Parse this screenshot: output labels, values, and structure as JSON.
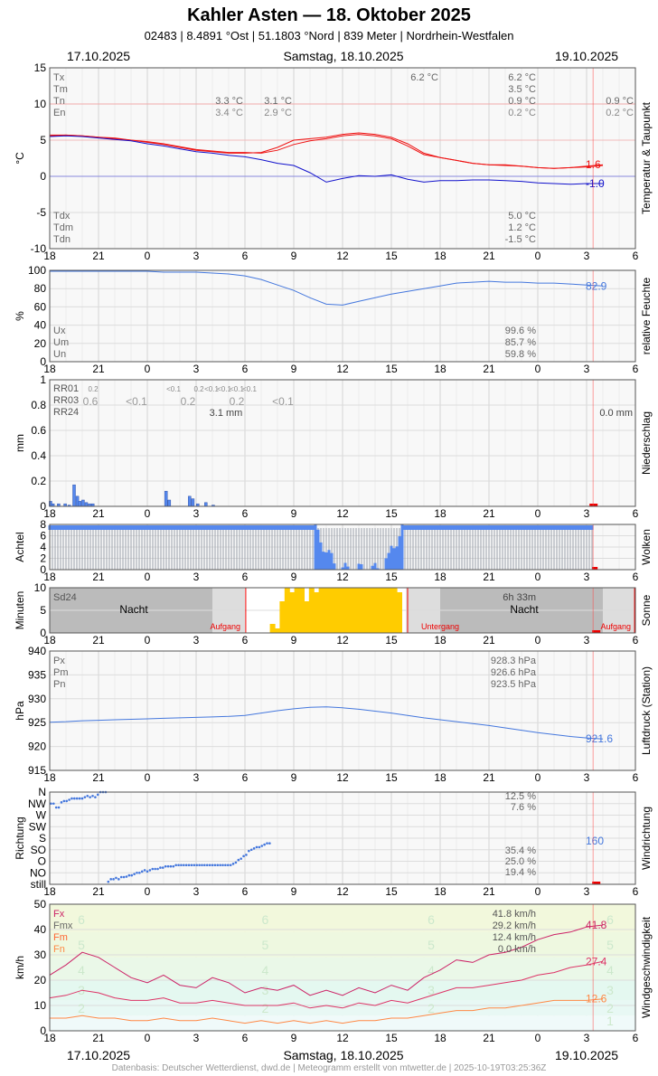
{
  "header": {
    "title": "Kahler Asten  —  18. Oktober 2025",
    "subtitle": "02483  |  8.4891 °Ost  |  51.1803 °Nord  |  839 Meter  |  Nordrhein-Westfalen"
  },
  "dates": {
    "left": "17.10.2025",
    "center": "Samstag, 18.10.2025",
    "right": "19.10.2025"
  },
  "footer": "Datenbasis: Deutscher Wetterdienst, dwd.de | Meteogramm erstellt von mtwetter.de | 2025-10-19T03:25:36Z",
  "x_ticks": [
    "18",
    "21",
    "0",
    "3",
    "6",
    "9",
    "12",
    "15",
    "18",
    "21",
    "0",
    "3",
    "6"
  ],
  "colors": {
    "grid": "#dddddd",
    "border": "#555555",
    "temp": "#ee1111",
    "dew": "#1111cc",
    "blue": "#4477dd",
    "rain": "#5588ee",
    "sun": "#ffcc00",
    "gust": "#cc2266",
    "wind_max": "#dd3366",
    "wind_mean": "#ff8844",
    "now": "#ff4444"
  },
  "chart_data": [
    {
      "type": "line",
      "name": "temperature",
      "ylabel": "°C",
      "side_label": "Temperatur & Taupunkt",
      "ylim": [
        -10,
        15
      ],
      "yticks": [
        15,
        10,
        5,
        0,
        -5,
        -10
      ],
      "x": [
        0,
        1,
        2,
        3,
        4,
        5,
        6,
        7,
        8,
        9,
        10,
        11,
        12,
        13,
        14,
        15,
        16,
        17,
        18,
        19,
        20,
        21,
        22,
        23,
        24,
        25,
        26,
        27,
        28,
        29,
        30,
        31,
        32,
        33,
        34
      ],
      "series": [
        {
          "values": [
            5.6,
            5.7,
            5.6,
            5.4,
            5.2,
            5.0,
            4.7,
            4.4,
            4.0,
            3.6,
            3.4,
            3.2,
            3.2,
            3.3,
            4.0,
            5.0,
            5.2,
            5.4,
            5.8,
            6.0,
            5.8,
            5.4,
            4.5,
            3.2,
            2.6,
            2.2,
            1.8,
            1.6,
            1.6,
            1.4,
            1.2,
            1.1,
            1.2,
            1.4,
            1.6
          ]
        },
        {
          "values": [
            5.7,
            5.7,
            5.6,
            5.4,
            5.3,
            5.0,
            4.8,
            4.5,
            4.1,
            3.7,
            3.5,
            3.3,
            3.3,
            3.2,
            3.6,
            4.4,
            4.9,
            5.2,
            5.6,
            5.8,
            5.6,
            5.2,
            4.2,
            3.0,
            2.6,
            2.2,
            1.8,
            1.6,
            1.5,
            1.4,
            1.2,
            1.1,
            1.2,
            1.3,
            1.5
          ]
        },
        {
          "values": [
            5.5,
            5.6,
            5.5,
            5.3,
            5.1,
            4.9,
            4.5,
            4.2,
            3.8,
            3.4,
            3.2,
            2.9,
            2.7,
            2.3,
            1.8,
            1.5,
            0.5,
            -0.8,
            -0.3,
            0.1,
            0.0,
            0.2,
            -0.4,
            -0.8,
            -0.6,
            -0.6,
            -0.5,
            -0.5,
            -0.6,
            -0.7,
            -0.9,
            -1.0,
            -1.1,
            -1.0,
            -1.0
          ]
        }
      ],
      "annotations": [
        {
          "row": 0,
          "label": "Tx"
        },
        {
          "row": 1,
          "label": "Tm"
        },
        {
          "row": 2,
          "label": "Tn"
        },
        {
          "row": 3,
          "label": "En"
        }
      ],
      "stat_values": [
        {
          "x": 2.9,
          "row": 2,
          "text": "3.3 °C"
        },
        {
          "x": 2.9,
          "row": 3,
          "text": "3.4 °C"
        },
        {
          "x": 4.0,
          "row": 2,
          "text": "3.1 °C"
        },
        {
          "x": 4.0,
          "row": 3,
          "text": "2.9 °C"
        },
        {
          "x": 11.0,
          "row": 0,
          "text": "6.2 °C"
        },
        {
          "x": 13.0,
          "row": 0,
          "text": "6.2 °C"
        },
        {
          "x": 13.0,
          "row": 1,
          "text": "3.5 °C"
        },
        {
          "x": 13.0,
          "row": 2,
          "text": "0.9 °C"
        },
        {
          "x": 13.0,
          "row": 3,
          "text": "0.2 °C"
        },
        {
          "x": 16.0,
          "row": 2,
          "text": "0.9 °C"
        },
        {
          "x": 16.0,
          "row": 3,
          "text": "0.2 °C"
        }
      ],
      "bottom_labels": [
        "Tdx",
        "Tdm",
        "Tdn"
      ],
      "bottom_values": [
        "5.0 °C",
        "1.2 °C",
        "-1.5 °C"
      ],
      "end_labels": [
        {
          "value": 1.6,
          "text": "1.6"
        },
        {
          "value": -1.0,
          "text": "-1.0"
        }
      ]
    },
    {
      "type": "line",
      "name": "humidity",
      "ylabel": "%",
      "side_label": "relative Feuchte",
      "ylim": [
        0,
        100
      ],
      "yticks": [
        100,
        80,
        60,
        40,
        20,
        0
      ],
      "x": [
        0,
        1,
        2,
        3,
        4,
        5,
        6,
        7,
        8,
        9,
        10,
        11,
        12,
        13,
        14,
        15,
        16,
        17,
        18,
        19,
        20,
        21,
        22,
        23,
        24,
        25,
        26,
        27,
        28,
        29,
        30,
        31,
        32,
        33,
        34
      ],
      "series": [
        {
          "values": [
            99,
            99,
            99,
            99,
            99,
            99,
            99,
            98,
            98,
            98,
            97,
            96,
            94,
            90,
            84,
            78,
            70,
            63,
            62,
            66,
            70,
            74,
            77,
            80,
            83,
            86,
            87,
            88,
            87,
            87,
            86,
            86,
            85,
            84,
            83
          ]
        }
      ],
      "bottom_labels": [
        "Ux",
        "Um",
        "Un"
      ],
      "bottom_values": [
        "99.6 %",
        "85.7 %",
        "59.8 %"
      ],
      "end_labels": [
        {
          "value": 82.9,
          "text": "82.9"
        }
      ]
    },
    {
      "type": "bar",
      "name": "precipitation",
      "ylabel": "mm",
      "side_label": "Niederschlag",
      "ylim": [
        0,
        1.0
      ],
      "yticks": [
        1.0,
        0.8,
        0.6,
        0.4,
        0.2,
        0
      ],
      "x": [
        0.05,
        0.2,
        0.55,
        0.95,
        1.2,
        1.5,
        1.7,
        1.85,
        2.05,
        2.25,
        2.45,
        2.65,
        7.15,
        7.35,
        8.6,
        8.8,
        9.1,
        9.6,
        10.05
      ],
      "values": [
        0.04,
        0.02,
        0.02,
        0.02,
        0.01,
        0.17,
        0.08,
        0.04,
        0.05,
        0.03,
        0.02,
        0.02,
        0.12,
        0.05,
        0.08,
        0.06,
        0.02,
        0.03,
        0.01
      ],
      "header_labels": [
        "RR01",
        "RR03",
        "RR24"
      ],
      "rr01_values": [
        {
          "x": 2.2,
          "text": "0.2"
        },
        {
          "x": 3.1,
          "text": "<0.1"
        },
        {
          "x": 7.2,
          "text": "0.2"
        },
        {
          "x": 8.9,
          "text": "<0.1"
        },
        {
          "x": 9.6,
          "text": "<0.1"
        },
        {
          "x": 10.3,
          "text": "<0.1"
        },
        {
          "x": 11.0,
          "text": "<0.1"
        }
      ],
      "rr03_values": [
        {
          "x": 2.5,
          "text": "0.6"
        },
        {
          "x": 5.1,
          "text": "<0.1"
        },
        {
          "x": 8.3,
          "text": "0.2"
        },
        {
          "x": 11.3,
          "text": "0.2"
        },
        {
          "x": 14.2,
          "text": "<0.1"
        }
      ],
      "rr24_values": [
        {
          "x": 10.5,
          "text": "3.1 mm"
        },
        {
          "x": 35.4,
          "text": "0.0 mm"
        }
      ]
    },
    {
      "type": "bar",
      "name": "clouds",
      "ylabel": "Achtel",
      "side_label": "Wolken",
      "ylim": [
        0,
        8
      ],
      "yticks": [
        8,
        6,
        4,
        2,
        0
      ],
      "x": [
        0,
        16.5
      ],
      "values": [
        8,
        0
      ],
      "clearing": [
        {
          "from": 16.5,
          "to": 21.5,
          "min_octa": 0
        }
      ]
    },
    {
      "type": "bar",
      "name": "sunshine",
      "ylabel": "Minuten",
      "side_label": "Sonne",
      "ylim": [
        0,
        10
      ],
      "yticks": [
        10,
        5,
        0
      ],
      "x": [
        13.7,
        14.0,
        14.3,
        14.6,
        14.9,
        15.2,
        15.5,
        15.8,
        16.1,
        16.4,
        16.7,
        17.0,
        17.3,
        17.6,
        17.9,
        18.2,
        18.5,
        18.8,
        19.1,
        19.4,
        19.7,
        20.0,
        20.3,
        20.6,
        20.9,
        21.2,
        21.5
      ],
      "values": [
        2,
        1,
        7,
        10,
        9,
        10,
        10,
        7,
        10,
        9,
        10,
        10,
        10,
        10,
        10,
        10,
        10,
        10,
        10,
        10,
        10,
        10,
        10,
        10,
        10,
        10,
        9
      ],
      "labels": {
        "sd24": "Sd24",
        "sd24_value": "6h 33m",
        "night": "Nacht",
        "night2": "Nacht",
        "sunrise": "Aufgang",
        "sunset": "Untergang",
        "sunrise2": "Aufgang"
      }
    },
    {
      "type": "line",
      "name": "pressure",
      "ylabel": "hPa",
      "side_label": "Luftdruck (Station)",
      "ylim": [
        915,
        940
      ],
      "yticks": [
        940,
        935,
        930,
        925,
        920,
        915
      ],
      "x": [
        0,
        1,
        2,
        3,
        4,
        5,
        6,
        7,
        8,
        9,
        10,
        11,
        12,
        13,
        14,
        15,
        16,
        17,
        18,
        19,
        20,
        21,
        22,
        23,
        24,
        25,
        26,
        27,
        28,
        29,
        30,
        31,
        32,
        33,
        34
      ],
      "series": [
        {
          "values": [
            925.1,
            925.2,
            925.4,
            925.5,
            925.6,
            925.7,
            925.8,
            925.9,
            926.0,
            926.1,
            926.2,
            926.3,
            926.5,
            927.0,
            927.5,
            927.9,
            928.2,
            928.3,
            928.1,
            927.8,
            927.4,
            927.0,
            926.5,
            926.0,
            925.6,
            925.2,
            924.8,
            924.4,
            923.9,
            923.4,
            922.9,
            922.5,
            922.1,
            921.8,
            921.6
          ]
        }
      ],
      "bottom_labels": [
        "Px",
        "Pm",
        "Pn"
      ],
      "bottom_values": [
        "928.3 hPa",
        "926.6 hPa",
        "923.5 hPa"
      ],
      "end_labels": [
        {
          "value": 921.6,
          "text": "921.6"
        }
      ]
    },
    {
      "type": "scatter",
      "name": "wind_direction",
      "ylabel": "Richtung",
      "side_label": "Windrichtung",
      "yticks": [
        "N",
        "NW",
        "W",
        "SW",
        "S",
        "SO",
        "O",
        "NO",
        "still"
      ],
      "x": [
        0.2,
        0.6,
        1.0,
        1.4,
        1.8,
        2.2,
        2.6,
        3.0,
        3.4,
        3.8,
        4.2,
        4.6,
        5.0,
        5.4,
        5.8,
        6.2,
        6.6,
        7.0,
        7.4,
        7.8,
        8.2,
        8.6,
        9.0,
        9.4,
        9.8,
        10.2,
        10.6,
        11.0,
        11.4,
        11.8,
        12.2,
        12.6,
        13.0,
        13.4,
        13.8,
        14.2,
        14.6,
        15.0,
        15.4,
        15.8,
        16.2,
        16.6,
        17.0,
        17.4,
        17.8,
        18.2,
        18.6,
        19.0,
        19.4,
        19.8,
        20.2,
        20.6,
        21.0,
        21.4,
        21.8,
        22.2,
        22.6,
        23.0,
        23.4,
        23.8,
        24.2,
        24.6,
        25.0,
        25.4,
        25.8,
        26.2,
        26.6,
        27.0,
        27.4,
        27.8,
        28.2,
        28.6,
        29.0,
        29.4,
        29.8,
        30.2,
        30.6,
        31.0,
        31.4,
        31.8,
        32.2,
        32.6,
        33.0,
        33.4,
        33.8
      ],
      "values": [
        315,
        315,
        300,
        300,
        320,
        325,
        325,
        330,
        335,
        335,
        335,
        335,
        335,
        340,
        345,
        340,
        345,
        340,
        350,
        360,
        0,
        0,
        10,
        20,
        20,
        25,
        20,
        15,
        25,
        30,
        35,
        35,
        40,
        45,
        45,
        50,
        55,
        50,
        55,
        60,
        60,
        60,
        65,
        65,
        70,
        70,
        70,
        70,
        75,
        75,
        75,
        75,
        75,
        75,
        75,
        75,
        75,
        75,
        75,
        75,
        75,
        75,
        75,
        75,
        75,
        75,
        75,
        75,
        75,
        75,
        80,
        85,
        95,
        100,
        110,
        115,
        130,
        135,
        140,
        145,
        145,
        150,
        155,
        160,
        160
      ],
      "annotations": [
        {
          "text": "12.5 %"
        },
        {
          "text": "7.6 %"
        },
        {
          "text": "35.4 %"
        },
        {
          "text": "25.0 %"
        },
        {
          "text": "19.4 %"
        }
      ],
      "end_labels": [
        {
          "text": "160"
        }
      ]
    },
    {
      "type": "line",
      "name": "wind_speed",
      "ylabel": "km/h",
      "side_label": "Windgeschwindigkeit",
      "ylim": [
        0,
        50
      ],
      "yticks": [
        50,
        40,
        30,
        20,
        10,
        0
      ],
      "x": [
        0,
        1,
        2,
        3,
        4,
        5,
        6,
        7,
        8,
        9,
        10,
        11,
        12,
        13,
        14,
        15,
        16,
        17,
        18,
        19,
        20,
        21,
        22,
        23,
        24,
        25,
        26,
        27,
        28,
        29,
        30,
        31,
        32,
        33,
        34
      ],
      "series": [
        {
          "values": [
            22,
            26,
            31,
            29,
            25,
            21,
            19,
            22,
            18,
            17,
            21,
            19,
            15,
            17,
            16,
            18,
            14,
            16,
            14,
            17,
            15,
            18,
            16,
            21,
            24,
            28,
            27,
            30,
            31,
            33,
            36,
            38,
            39,
            41,
            41.8
          ]
        },
        {
          "values": [
            13,
            14,
            16,
            15,
            13,
            12,
            12,
            13,
            11,
            11,
            12,
            11,
            10,
            10,
            10,
            11,
            9,
            10,
            9,
            11,
            10,
            12,
            11,
            13,
            15,
            17,
            17,
            18,
            19,
            20,
            22,
            23,
            25,
            26,
            27.4
          ]
        },
        {
          "values": [
            5,
            5,
            6,
            5,
            5,
            4,
            4,
            5,
            4,
            4,
            5,
            4,
            3,
            4,
            3,
            4,
            3,
            4,
            3,
            4,
            4,
            5,
            5,
            6,
            7,
            8,
            8,
            9,
            9,
            10,
            11,
            12,
            12,
            12,
            12.6
          ]
        }
      ],
      "annotations": [
        {
          "label": "Fx"
        },
        {
          "label": "Fmx"
        },
        {
          "label": "Fm"
        },
        {
          "label": "Fn"
        }
      ],
      "bottom_values": [
        "41.8 km/h",
        "29.2 km/h",
        "12.4 km/h",
        "0.0 km/h"
      ],
      "end_labels": [
        {
          "value": 41.8,
          "text": "41.8"
        },
        {
          "value": 27.4,
          "text": "27.4"
        },
        {
          "value": 12.6,
          "text": "12.6"
        }
      ],
      "bft_levels": [
        "1",
        "2",
        "3",
        "4",
        "5",
        "6"
      ]
    }
  ]
}
